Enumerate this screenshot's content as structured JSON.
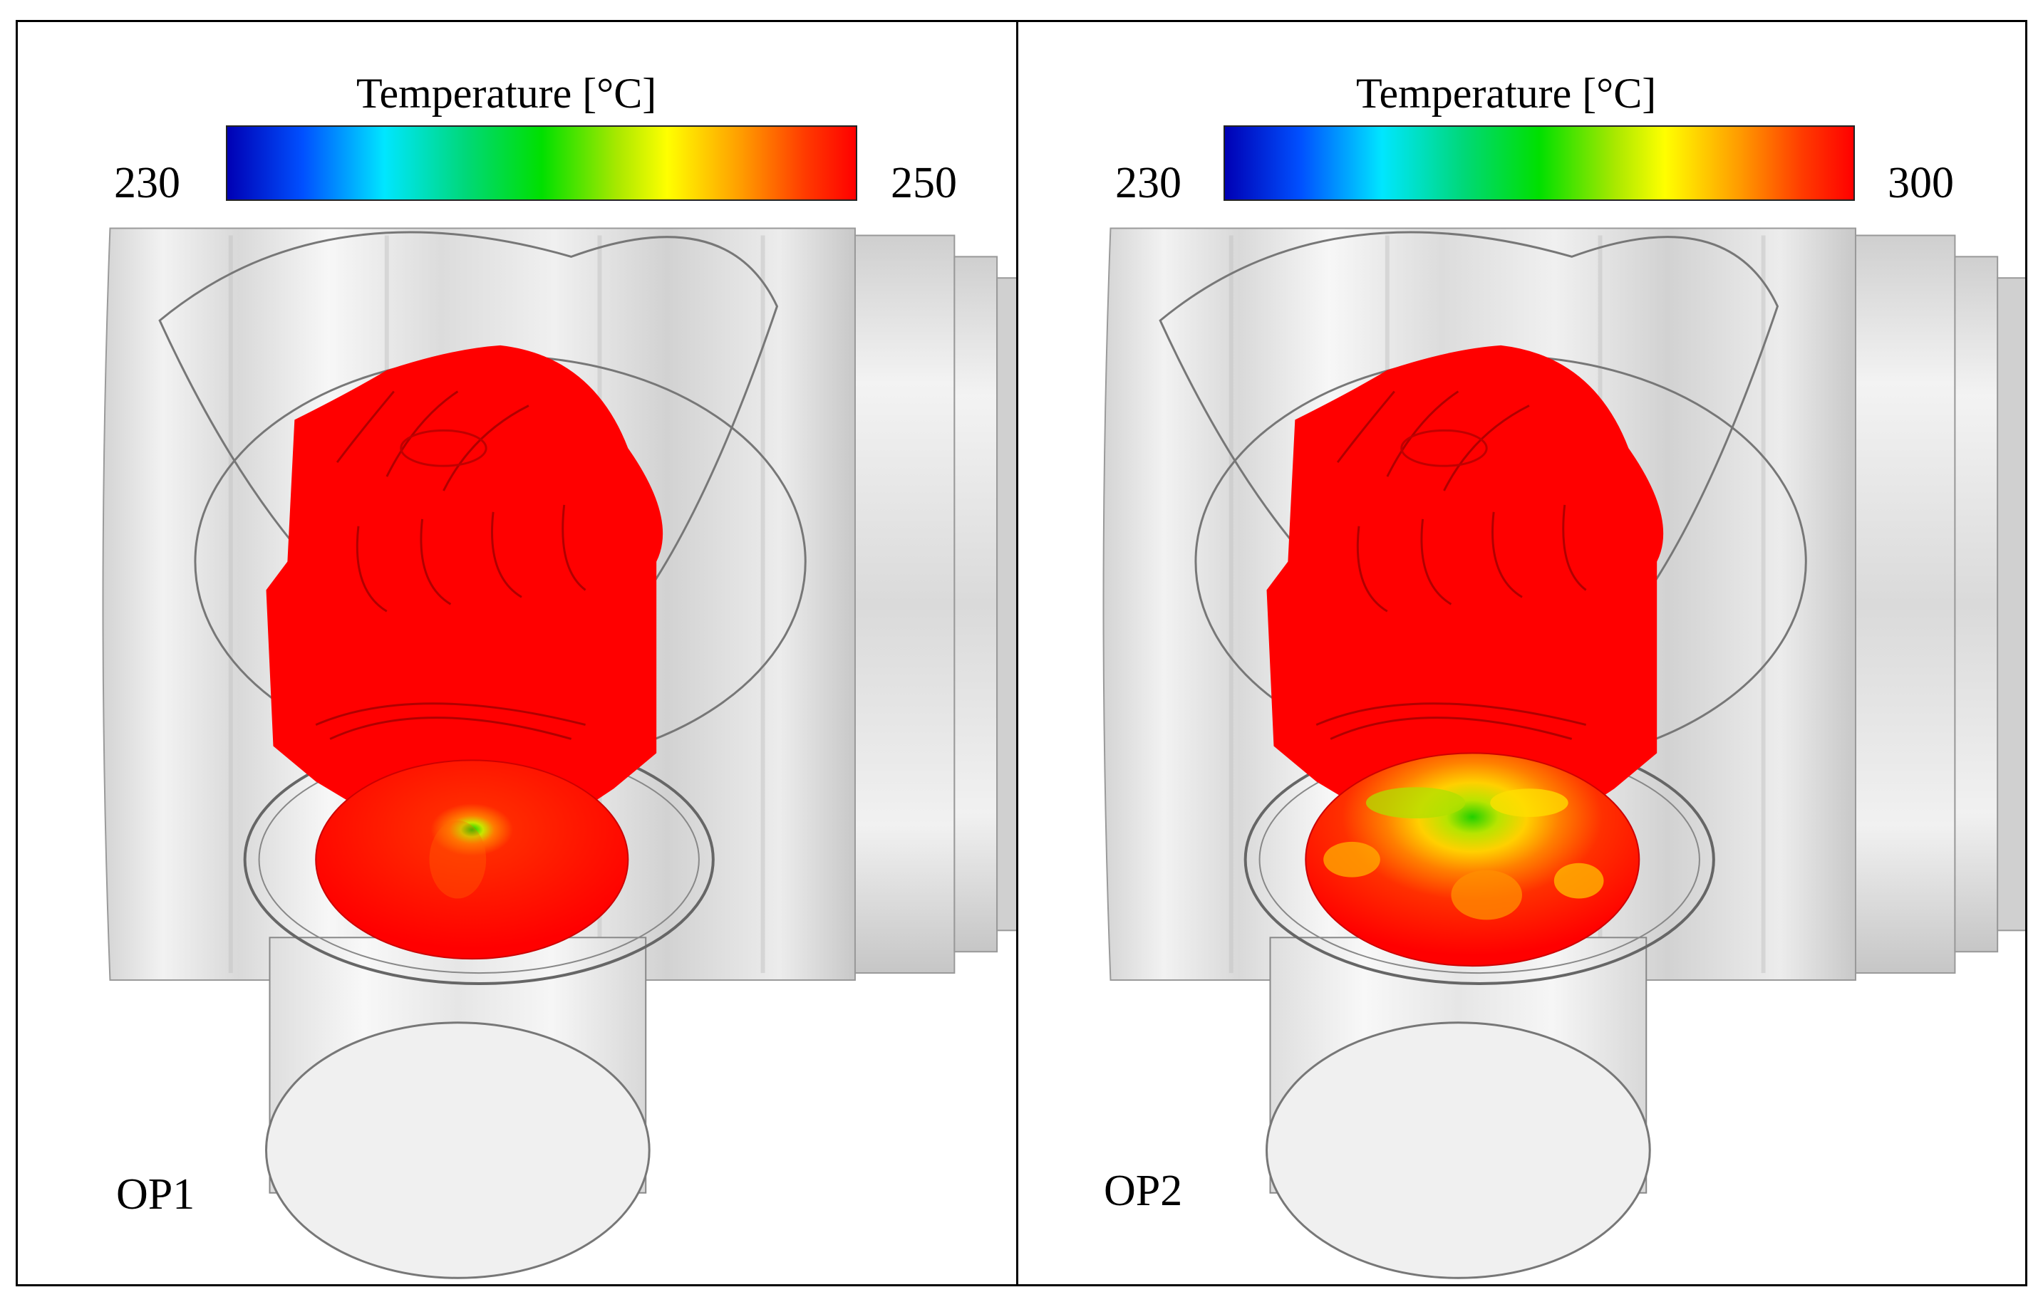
{
  "panels": [
    {
      "colorbar": {
        "title": "Temperature [°C]",
        "min_label": "230",
        "max_label": "250"
      },
      "case_label": "OP1"
    },
    {
      "colorbar": {
        "title": "Temperature [°C]",
        "min_label": "230",
        "max_label": "300"
      },
      "case_label": "OP2"
    }
  ],
  "colormap": [
    "#0000b4",
    "#00e6ff",
    "#00e000",
    "#ffff00",
    "#ff0000"
  ]
}
